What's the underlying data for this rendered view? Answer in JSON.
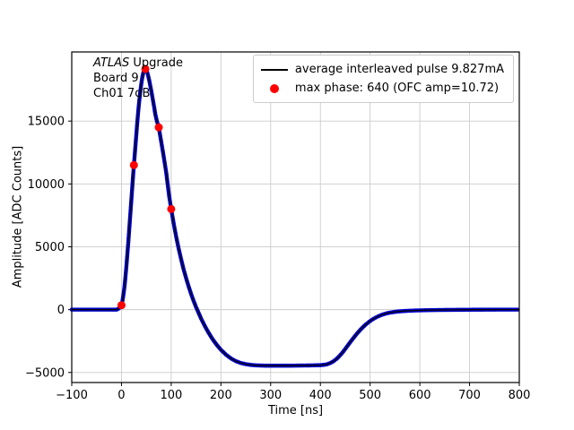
{
  "figure": {
    "annotation": {
      "line1_italic": "ATLAS",
      "line1_rest": " Upgrade",
      "line2": "Board 9",
      "line3": "Ch01 7dB"
    },
    "colors": {
      "curve_line": "#000000",
      "curve_marker": "#0000cc",
      "max_phase_marker": "#ff0000",
      "grid": "#cccccc",
      "axes": "#000000"
    }
  },
  "chart_data": {
    "type": "line",
    "title": "",
    "xlabel": "Time [ns]",
    "ylabel": "Amplitude [ADC Counts]",
    "xlim": [
      -100,
      800
    ],
    "ylim": [
      -5800,
      20500
    ],
    "xticks": [
      -100,
      0,
      100,
      200,
      300,
      400,
      500,
      600,
      700,
      800
    ],
    "yticks": [
      -5000,
      0,
      5000,
      10000,
      15000
    ],
    "grid": true,
    "legend_position": "upper right",
    "series": [
      {
        "name": "average interleaved pulse 9.827mA",
        "style": "line+dense-markers",
        "line_color": "#000000",
        "marker_color": "#0000cc",
        "points": [
          [
            -100,
            0
          ],
          [
            -90,
            0
          ],
          [
            -80,
            0
          ],
          [
            -70,
            0
          ],
          [
            -60,
            0
          ],
          [
            -50,
            0
          ],
          [
            -40,
            0
          ],
          [
            -30,
            0
          ],
          [
            -20,
            0
          ],
          [
            -14,
            0
          ],
          [
            -10,
            0
          ],
          [
            -8,
            30
          ],
          [
            -6,
            80
          ],
          [
            -4,
            140
          ],
          [
            -2,
            220
          ],
          [
            0,
            350
          ],
          [
            2,
            700
          ],
          [
            4,
            1200
          ],
          [
            6,
            1800
          ],
          [
            8,
            2600
          ],
          [
            10,
            3500
          ],
          [
            12,
            4500
          ],
          [
            14,
            5500
          ],
          [
            16,
            6600
          ],
          [
            18,
            7700
          ],
          [
            20,
            8800
          ],
          [
            22,
            9900
          ],
          [
            24,
            11000
          ],
          [
            26,
            12000
          ],
          [
            28,
            13000
          ],
          [
            30,
            14000
          ],
          [
            32,
            15000
          ],
          [
            34,
            15900
          ],
          [
            36,
            16700
          ],
          [
            38,
            17400
          ],
          [
            40,
            18000
          ],
          [
            42,
            18500
          ],
          [
            44,
            18850
          ],
          [
            46,
            19080
          ],
          [
            48,
            19150
          ],
          [
            50,
            19050
          ],
          [
            52,
            18850
          ],
          [
            54,
            18550
          ],
          [
            56,
            18200
          ],
          [
            58,
            17800
          ],
          [
            60,
            17400
          ],
          [
            62,
            16950
          ],
          [
            64,
            16500
          ],
          [
            66,
            16050
          ],
          [
            68,
            15550
          ],
          [
            71,
            15030
          ],
          [
            75,
            14500
          ],
          [
            78,
            13800
          ],
          [
            81,
            13100
          ],
          [
            84,
            12400
          ],
          [
            87,
            11650
          ],
          [
            90,
            10900
          ],
          [
            93,
            9950
          ],
          [
            96,
            9000
          ],
          [
            100,
            8000
          ],
          [
            105,
            6850
          ],
          [
            110,
            5800
          ],
          [
            115,
            4850
          ],
          [
            120,
            4000
          ],
          [
            125,
            3200
          ],
          [
            130,
            2500
          ],
          [
            135,
            1850
          ],
          [
            140,
            1250
          ],
          [
            145,
            700
          ],
          [
            150,
            200
          ],
          [
            155,
            -250
          ],
          [
            160,
            -700
          ],
          [
            165,
            -1100
          ],
          [
            170,
            -1480
          ],
          [
            175,
            -1830
          ],
          [
            180,
            -2150
          ],
          [
            185,
            -2450
          ],
          [
            190,
            -2720
          ],
          [
            195,
            -2970
          ],
          [
            200,
            -3200
          ],
          [
            210,
            -3580
          ],
          [
            220,
            -3880
          ],
          [
            230,
            -4100
          ],
          [
            240,
            -4250
          ],
          [
            250,
            -4340
          ],
          [
            260,
            -4400
          ],
          [
            270,
            -4430
          ],
          [
            280,
            -4450
          ],
          [
            290,
            -4460
          ],
          [
            300,
            -4460
          ],
          [
            320,
            -4460
          ],
          [
            340,
            -4460
          ],
          [
            360,
            -4450
          ],
          [
            380,
            -4440
          ],
          [
            400,
            -4420
          ],
          [
            408,
            -4390
          ],
          [
            414,
            -4340
          ],
          [
            420,
            -4250
          ],
          [
            426,
            -4120
          ],
          [
            432,
            -3940
          ],
          [
            438,
            -3710
          ],
          [
            444,
            -3440
          ],
          [
            450,
            -3130
          ],
          [
            456,
            -2810
          ],
          [
            462,
            -2490
          ],
          [
            468,
            -2180
          ],
          [
            474,
            -1890
          ],
          [
            480,
            -1620
          ],
          [
            486,
            -1380
          ],
          [
            492,
            -1160
          ],
          [
            498,
            -970
          ],
          [
            504,
            -800
          ],
          [
            510,
            -660
          ],
          [
            516,
            -540
          ],
          [
            522,
            -440
          ],
          [
            528,
            -360
          ],
          [
            534,
            -290
          ],
          [
            540,
            -240
          ],
          [
            548,
            -190
          ],
          [
            556,
            -150
          ],
          [
            566,
            -120
          ],
          [
            578,
            -90
          ],
          [
            592,
            -70
          ],
          [
            610,
            -50
          ],
          [
            640,
            -30
          ],
          [
            680,
            -15
          ],
          [
            720,
            -5
          ],
          [
            760,
            0
          ],
          [
            800,
            0
          ]
        ]
      },
      {
        "name": "max phase: 640 (OFC amp=10.72)",
        "style": "scatter",
        "marker_color": "#ff0000",
        "points": [
          [
            0,
            350
          ],
          [
            25,
            11500
          ],
          [
            48,
            19150
          ],
          [
            75,
            14500
          ],
          [
            100,
            8000
          ]
        ]
      }
    ]
  }
}
